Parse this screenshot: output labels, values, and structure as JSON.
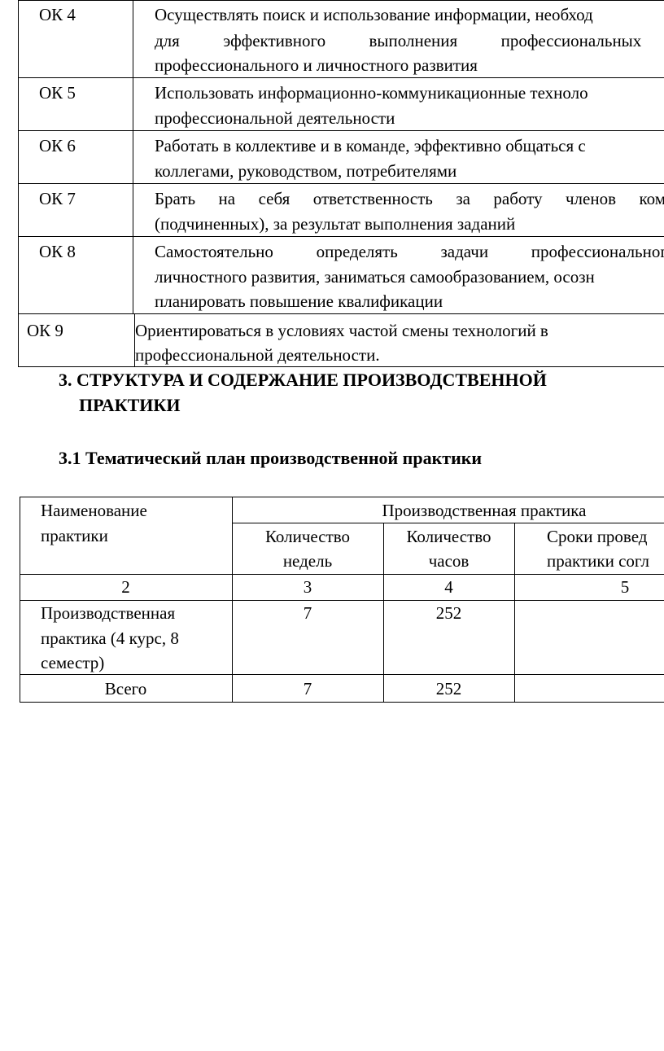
{
  "competencies": [
    {
      "code": "ОК 4",
      "lines": [
        "Осуществлять поиск и использование информации, необход",
        "для эффективного выполнения профессиональных з",
        "профессионального и личностного развития"
      ]
    },
    {
      "code": "ОК 5",
      "lines": [
        "Использовать информационно-коммуникационные техноло",
        "профессиональной деятельности"
      ]
    },
    {
      "code": "ОК 6",
      "lines": [
        "Работать в коллективе и в команде, эффективно общаться с",
        "коллегами, руководством, потребителями"
      ]
    },
    {
      "code": "ОК 7",
      "lines": [
        "Брать на себя ответственность за работу членов ком",
        "(подчиненных), за результат выполнения заданий"
      ]
    },
    {
      "code": "ОК 8",
      "lines": [
        "Самостоятельно определять задачи профессиональног",
        "личностного развития, заниматься самообразованием, осозн",
        "планировать повышение квалификации"
      ]
    },
    {
      "code": "ОК 9",
      "lines": [
        "Ориентироваться в условиях частой смены технологий в",
        "профессиональной деятельности."
      ]
    }
  ],
  "section": {
    "heading_line1": "3. СТРУКТУРА И СОДЕРЖАНИЕ ПРОИЗВОДСТВЕННОЙ",
    "heading_line2": "ПРАКТИКИ",
    "subheading": "3.1  Тематический план производственной  практики"
  },
  "plan_table": {
    "name_header": [
      "Наименование",
      "практики"
    ],
    "group_header": "Производственная практика",
    "col3": [
      "Количество",
      "недель"
    ],
    "col4": [
      "Количество",
      "часов"
    ],
    "col5": [
      "Сроки провед",
      "практики согл"
    ],
    "numbers": [
      "2",
      "3",
      "4",
      "5"
    ],
    "row": {
      "name": [
        "Производственная",
        "практика (4 курс, 8",
        "семестр)"
      ],
      "weeks": "7",
      "hours": "252",
      "dates": ""
    },
    "total": {
      "label": "Всего",
      "weeks": "7",
      "hours": "252",
      "dates": ""
    }
  }
}
